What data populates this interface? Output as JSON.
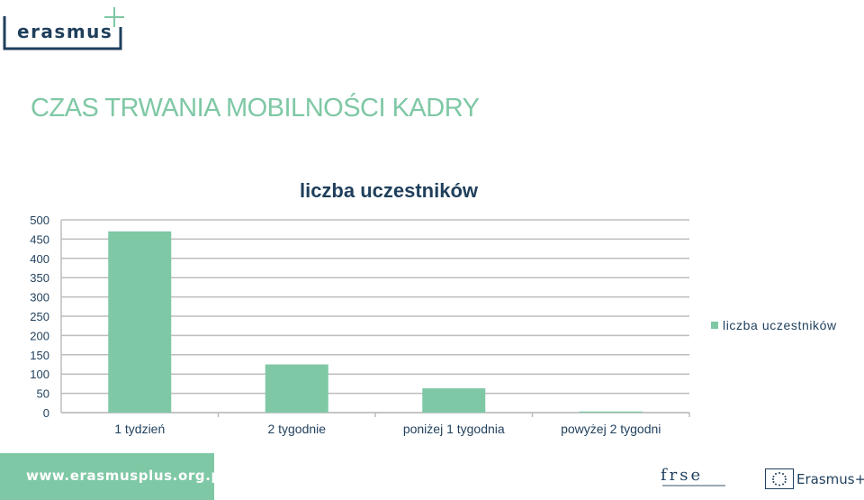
{
  "header": {
    "logo_text": "erasmus",
    "logo_plus": "+"
  },
  "slide": {
    "title": "CZAS TRWANIA MOBILNOŚCI KADRY"
  },
  "chart_data": {
    "type": "bar",
    "title": "liczba uczestników",
    "categories": [
      "1 tydzień",
      "2 tygodnie",
      "poniżej 1 tygodnia",
      "powyżej 2 tygodni"
    ],
    "series": [
      {
        "name": "liczba uczestników",
        "values": [
          470,
          125,
          63,
          3
        ]
      }
    ],
    "ylim": [
      0,
      500
    ],
    "yticks": [
      0,
      50,
      100,
      150,
      200,
      250,
      300,
      350,
      400,
      450,
      500
    ],
    "grid": true,
    "legend_position": "right",
    "bar_color": "#7fc8a5"
  },
  "footer": {
    "url": "www.erasmusplus.org.pl",
    "frse_letters": "frse",
    "eu_label": "Erasmus+"
  }
}
